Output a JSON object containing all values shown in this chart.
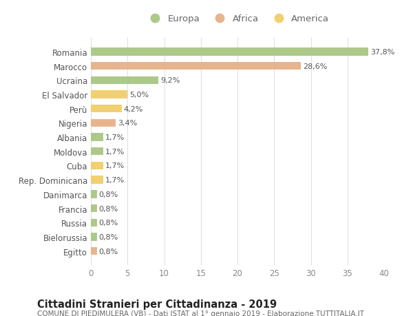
{
  "categories": [
    "Romania",
    "Marocco",
    "Ucraina",
    "El Salvador",
    "Perù",
    "Nigeria",
    "Albania",
    "Moldova",
    "Cuba",
    "Rep. Dominicana",
    "Danimarca",
    "Francia",
    "Russia",
    "Bielorussia",
    "Egitto"
  ],
  "values": [
    37.8,
    28.6,
    9.2,
    5.0,
    4.2,
    3.4,
    1.7,
    1.7,
    1.7,
    1.7,
    0.8,
    0.8,
    0.8,
    0.8,
    0.8
  ],
  "labels": [
    "37,8%",
    "28,6%",
    "9,2%",
    "5,0%",
    "4,2%",
    "3,4%",
    "1,7%",
    "1,7%",
    "1,7%",
    "1,7%",
    "0,8%",
    "0,8%",
    "0,8%",
    "0,8%",
    "0,8%"
  ],
  "colors": [
    "#adc98a",
    "#e8b48e",
    "#adc98a",
    "#f0d070",
    "#f0d070",
    "#e8b48e",
    "#adc98a",
    "#adc98a",
    "#f0d070",
    "#f0d070",
    "#adc98a",
    "#adc98a",
    "#adc98a",
    "#adc98a",
    "#e8b48e"
  ],
  "legend_labels": [
    "Europa",
    "Africa",
    "America"
  ],
  "legend_colors": [
    "#adc98a",
    "#e8b48e",
    "#f0d070"
  ],
  "title": "Cittadini Stranieri per Cittadinanza - 2019",
  "subtitle": "COMUNE DI PIEDIMULERA (VB) - Dati ISTAT al 1° gennaio 2019 - Elaborazione TUTTITALIA.IT",
  "xlim": [
    0,
    40
  ],
  "xticks": [
    0,
    5,
    10,
    15,
    20,
    25,
    30,
    35,
    40
  ],
  "bg_color": "#ffffff",
  "grid_color": "#e0e0e0",
  "bar_height": 0.55,
  "title_fontsize": 10.5,
  "subtitle_fontsize": 7.5,
  "label_fontsize": 8,
  "tick_fontsize": 8.5,
  "legend_fontsize": 9.5
}
